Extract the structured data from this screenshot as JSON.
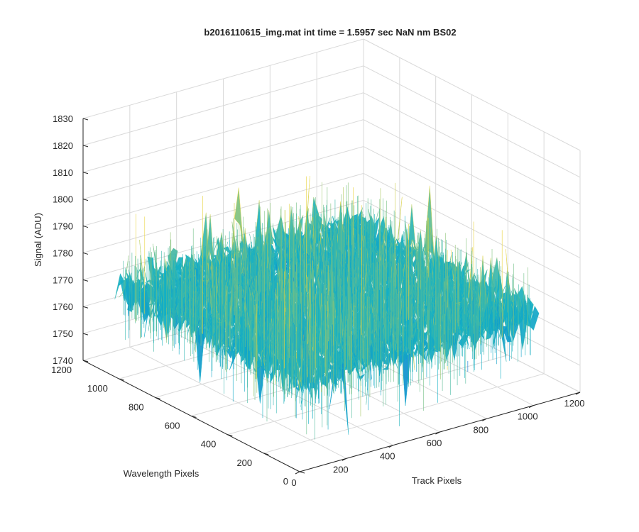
{
  "chart_data": {
    "type": "surface",
    "title": "b2016110615_img.mat int time = 1.5957 sec  NaN nm BS02",
    "xlabel": "Track Pixels",
    "ylabel": "Wavelength Pixels",
    "zlabel": "Signal (ADU)",
    "xlim": [
      0,
      1200
    ],
    "ylim": [
      0,
      1200
    ],
    "zlim": [
      1740,
      1830
    ],
    "x_ticks": [
      0,
      200,
      400,
      600,
      800,
      1000,
      1200
    ],
    "y_ticks": [
      0,
      200,
      400,
      600,
      800,
      1000,
      1200
    ],
    "z_ticks": [
      1740,
      1750,
      1760,
      1770,
      1780,
      1790,
      1800,
      1810,
      1820,
      1830
    ],
    "data_extent": {
      "x": [
        0,
        1024
      ],
      "y": [
        0,
        1024
      ]
    },
    "signal": {
      "mean": 1773,
      "typical_min": 1755,
      "typical_max": 1795,
      "peak_max": 1825
    },
    "grid": true,
    "colormap": "parula",
    "colors": {
      "low": "#0a72d8",
      "mid": "#14b1c4",
      "high": "#e8d33a",
      "grid": "#d9d9d9",
      "axis": "#262626"
    }
  }
}
